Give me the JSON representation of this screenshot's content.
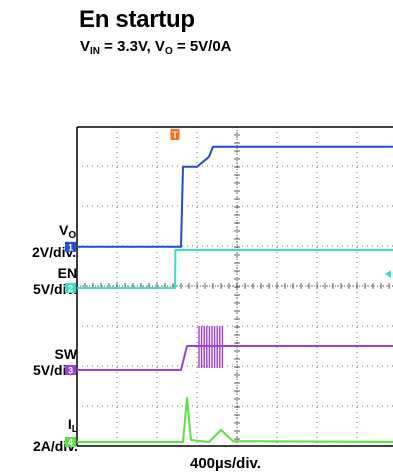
{
  "title": "En startup",
  "subtitle": {
    "vin_label": "V",
    "vin_sub": "IN",
    "vin_value": " = 3.3V, V",
    "vo_sub": "O",
    "vo_value": " = 5V/0A"
  },
  "channels": [
    {
      "name": "V",
      "sub": "O",
      "scale": "2V/div.",
      "marker": "1",
      "color": "#1f4fd8"
    },
    {
      "name": "EN",
      "sub": "",
      "scale": "5V/div.",
      "marker": "2",
      "color": "#39e0c8"
    },
    {
      "name": "SW",
      "sub": "",
      "scale": "5V/div.",
      "marker": "3",
      "color": "#9b3fe0"
    },
    {
      "name": "I",
      "sub": "L",
      "scale": "2A/div.",
      "marker": "4",
      "color": "#55e63a"
    }
  ],
  "trigger_marker": "T",
  "trigger_color": "#ff6a1a",
  "xlabel": "400µs/div.",
  "chart_data": {
    "type": "line",
    "x_unit": "div",
    "xlim": [
      0,
      8
    ],
    "ylim": [
      0,
      8
    ],
    "grid": true,
    "series": [
      {
        "name": "V",
        "x": [
          0,
          2.6,
          2.65,
          3.0,
          3.3,
          3.4,
          8
        ],
        "y": [
          4.98,
          4.98,
          6.98,
          6.98,
          7.23,
          7.48,
          7.48
        ]
      },
      {
        "name": "EN",
        "x": [
          0,
          2.45,
          2.46,
          8
        ],
        "y": [
          3.95,
          3.95,
          4.9,
          4.9
        ]
      },
      {
        "name": "SW",
        "x": [
          0,
          2.6,
          2.75,
          3.3,
          8
        ],
        "y": [
          1.9,
          1.9,
          2.5,
          2.5,
          2.5
        ]
      },
      {
        "name": "I",
        "x": [
          0,
          2.65,
          2.75,
          2.85,
          3.3,
          3.6,
          3.9,
          8
        ],
        "y": [
          0.1,
          0.1,
          1.2,
          0.15,
          0.1,
          0.4,
          0.12,
          0.1
        ]
      }
    ]
  }
}
